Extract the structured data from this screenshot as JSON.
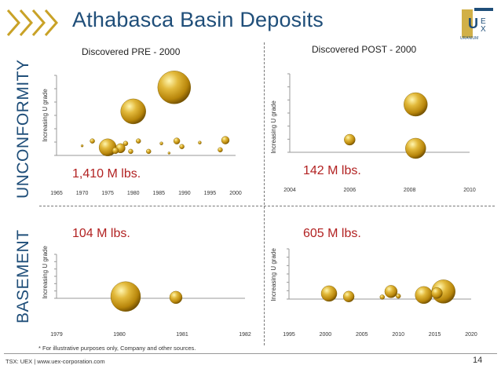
{
  "title": "Athabasca Basin Deposits",
  "headers": {
    "pre": "Discovered PRE - 2000",
    "post": "Discovered POST - 2000"
  },
  "side_labels": {
    "unconformity": "UNCONFORMITY",
    "basement": "BASEMENT"
  },
  "logo": {
    "text": "UEX URANIUM"
  },
  "footnote": "* For illustrative purposes only, Company and other sources.",
  "footer": {
    "text": "TSX: UEX | www.uex-corporation.com",
    "page": "14"
  },
  "colors": {
    "title": "#1f4e79",
    "label_red": "#b22222",
    "bubble_gold": "#d4a017"
  },
  "chart_data": [
    {
      "id": "unconformity_pre",
      "type": "scatter",
      "ylabel": "Increasing U grade",
      "annotation": "1,410 M lbs.",
      "xlim": [
        1965,
        2000
      ],
      "ylim": [
        0,
        10
      ],
      "xticks": [
        "1965",
        "1970",
        "1975",
        "1980",
        "1985",
        "1990",
        "1995",
        "2000"
      ],
      "points": [
        {
          "x": 1970,
          "y": 1.2,
          "size": 1.5
        },
        {
          "x": 1972,
          "y": 1.8,
          "size": 3
        },
        {
          "x": 1975,
          "y": 1,
          "size": 11
        },
        {
          "x": 1976.5,
          "y": 0.6,
          "size": 4
        },
        {
          "x": 1977.5,
          "y": 0.9,
          "size": 6
        },
        {
          "x": 1978.5,
          "y": 1.5,
          "size": 3
        },
        {
          "x": 1979.5,
          "y": 0.5,
          "size": 3
        },
        {
          "x": 1980,
          "y": 5.5,
          "size": 16
        },
        {
          "x": 1981,
          "y": 1.8,
          "size": 3
        },
        {
          "x": 1983,
          "y": 0.5,
          "size": 3
        },
        {
          "x": 1985.5,
          "y": 1.5,
          "size": 2
        },
        {
          "x": 1987,
          "y": 0.3,
          "size": 1.5
        },
        {
          "x": 1988,
          "y": 8.5,
          "size": 21
        },
        {
          "x": 1988.5,
          "y": 1.8,
          "size": 4
        },
        {
          "x": 1989.5,
          "y": 1.1,
          "size": 3
        },
        {
          "x": 1993,
          "y": 1.6,
          "size": 2
        },
        {
          "x": 1997,
          "y": 0.7,
          "size": 3
        },
        {
          "x": 1998,
          "y": 1.9,
          "size": 5
        }
      ]
    },
    {
      "id": "unconformity_post",
      "type": "scatter",
      "ylabel": "Increasing U grade",
      "annotation": "142 M lbs.",
      "xlim": [
        2004,
        2010
      ],
      "ylim": [
        0,
        10
      ],
      "xticks": [
        "2004",
        "2006",
        "2008",
        "2010"
      ],
      "points": [
        {
          "x": 2006,
          "y": 1.6,
          "size": 7
        },
        {
          "x": 2008.2,
          "y": 6.1,
          "size": 15
        },
        {
          "x": 2008.2,
          "y": 0.5,
          "size": 13
        }
      ]
    },
    {
      "id": "basement_pre",
      "type": "scatter",
      "ylabel": "Increasing U grade",
      "annotation": "104 M lbs.",
      "xlim": [
        1979,
        1982
      ],
      "ylim": [
        0,
        10
      ],
      "xticks": [
        "1979",
        "1980",
        "1981",
        "1982"
      ],
      "points": [
        {
          "x": 1980.1,
          "y": 0.4,
          "size": 19
        },
        {
          "x": 1980.9,
          "y": 0.2,
          "size": 8
        }
      ]
    },
    {
      "id": "basement_post",
      "type": "scatter",
      "ylabel": "Increasing U grade",
      "annotation": "605 M lbs.",
      "xlim": [
        1995,
        2020
      ],
      "ylim": [
        0,
        10
      ],
      "xticks": [
        "1995",
        "2000",
        "2005",
        "2010",
        "2015",
        "2020"
      ],
      "points": [
        {
          "x": 2000.5,
          "y": 1.1,
          "size": 10
        },
        {
          "x": 2003.2,
          "y": 0.5,
          "size": 7
        },
        {
          "x": 2007.8,
          "y": 0.4,
          "size": 3
        },
        {
          "x": 2009,
          "y": 1.5,
          "size": 8
        },
        {
          "x": 2010,
          "y": 0.6,
          "size": 3
        },
        {
          "x": 2013.5,
          "y": 0.8,
          "size": 11
        },
        {
          "x": 2015.3,
          "y": 1.2,
          "size": 7
        },
        {
          "x": 2016.2,
          "y": 1.5,
          "size": 15
        }
      ]
    }
  ]
}
